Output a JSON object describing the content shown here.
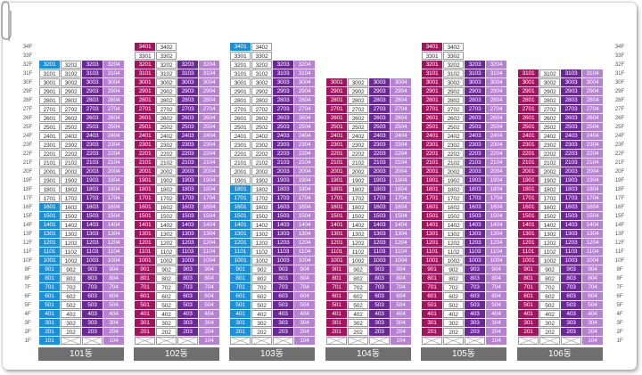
{
  "floors": [
    "1F",
    "2F",
    "3F",
    "4F",
    "5F",
    "6F",
    "7F",
    "8F",
    "9F",
    "10F",
    "11F",
    "12F",
    "13F",
    "14F",
    "15F",
    "16F",
    "17F",
    "18F",
    "19F",
    "20F",
    "21F",
    "22F",
    "23F",
    "24F",
    "25F",
    "26F",
    "27F",
    "28F",
    "29F",
    "30F",
    "31F",
    "32F",
    "33F",
    "34F"
  ],
  "colors": {
    "magenta": "#9e175c",
    "purple": "#6a2a94",
    "violet": "#7b3aa8",
    "light_purple": "#b482cf",
    "blue": "#1f8ed4",
    "white": "#ffffff",
    "label_bg": "#6f6f6f"
  },
  "buildings": [
    {
      "name": "101동",
      "top_floor": 32,
      "columns": [
        {
          "line": 1,
          "color": "blue",
          "mixed_white": true
        },
        {
          "line": 2,
          "color": "white"
        },
        {
          "line": 3,
          "color": "purple"
        },
        {
          "line": 4,
          "color": "light_purple"
        }
      ],
      "note": "rows 1F line 1 blue; 101 only on 1F line1"
    },
    {
      "name": "102동",
      "top_floor": 34
    },
    {
      "name": "103동",
      "top_floor": 34
    },
    {
      "name": "104동",
      "top_floor": 30
    },
    {
      "name": "105동",
      "top_floor": 34
    },
    {
      "name": "106동",
      "top_floor": 31
    }
  ]
}
